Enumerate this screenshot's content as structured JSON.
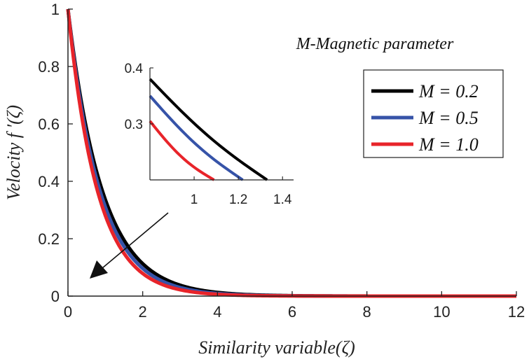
{
  "chart_data": {
    "type": "line",
    "title": "",
    "xlabel": "Similarity variable(ζ)",
    "ylabel": "Velocity  f ′(ζ)",
    "xlim": [
      0,
      12
    ],
    "ylim": [
      0,
      1
    ],
    "xticks": [
      "0",
      "2",
      "4",
      "6",
      "8",
      "10",
      "12"
    ],
    "yticks": [
      "0",
      "0.2",
      "0.4",
      "0.6",
      "0.8",
      "1"
    ],
    "annotation": "M-Magnetic parameter",
    "legend_position": "upper-right",
    "series": [
      {
        "name": "M = 0.2",
        "color": "#000000",
        "rate": 1.09
      },
      {
        "name": "M = 0.5",
        "color": "#3653a8",
        "rate": 1.17
      },
      {
        "name": "M = 1.0",
        "color": "#e8242a",
        "rate": 1.27
      }
    ],
    "inset": {
      "xlim": [
        0.8,
        1.45
      ],
      "ylim": [
        0.2,
        0.4
      ],
      "xticks": [
        "1",
        "1.2",
        "1.4"
      ],
      "yticks": [
        "0.3",
        "0.4"
      ],
      "series": [
        {
          "name": "M = 0.2",
          "x": [
            0.8,
            1.33
          ],
          "y": [
            0.38,
            0.2
          ]
        },
        {
          "name": "M = 0.5",
          "x": [
            0.8,
            1.22
          ],
          "y": [
            0.35,
            0.2
          ]
        },
        {
          "name": "M = 1.0",
          "x": [
            0.8,
            1.09
          ],
          "y": [
            0.305,
            0.2
          ]
        }
      ]
    }
  }
}
